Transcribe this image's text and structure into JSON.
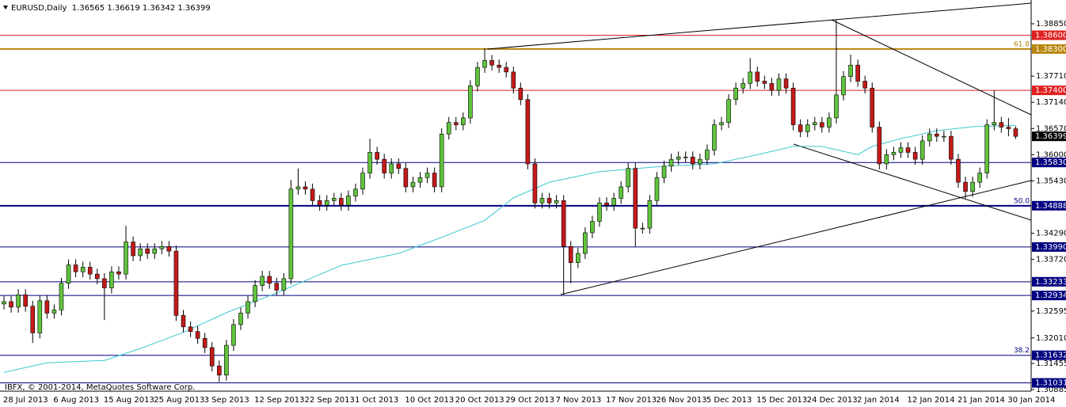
{
  "chart_data": {
    "type": "candlestick",
    "title": "EURUSD,Daily  1.36565 1.36619 1.36342 1.36399",
    "source": "IBFX, © 2001-2014, MetaQuotes Software Corp.",
    "categories": [
      "28 Jul 2013",
      null,
      null,
      null,
      null,
      null,
      null,
      "6 Aug 2013",
      null,
      null,
      null,
      null,
      null,
      null,
      "15 Aug 2013",
      null,
      null,
      null,
      null,
      null,
      null,
      "25 Aug 2013",
      null,
      null,
      null,
      null,
      null,
      null,
      "3 Sep 2013",
      null,
      null,
      null,
      null,
      null,
      null,
      "12 Sep 2013",
      null,
      null,
      null,
      null,
      null,
      null,
      "22 Sep 2013",
      null,
      null,
      null,
      null,
      null,
      null,
      "1 Oct 2013",
      null,
      null,
      null,
      null,
      null,
      null,
      "10 Oct 2013",
      null,
      null,
      null,
      null,
      null,
      null,
      "20 Oct 2013",
      null,
      null,
      null,
      null,
      null,
      null,
      "29 Oct 2013",
      null,
      null,
      null,
      null,
      null,
      null,
      "7 Nov 2013",
      null,
      null,
      null,
      null,
      null,
      null,
      "17 Nov 2013",
      null,
      null,
      null,
      null,
      null,
      null,
      "26 Nov 2013",
      null,
      null,
      null,
      null,
      null,
      null,
      "5 Dec 2013",
      null,
      null,
      null,
      null,
      null,
      null,
      "15 Dec 2013",
      null,
      null,
      null,
      null,
      null,
      null,
      "24 Dec 2013",
      null,
      null,
      null,
      null,
      null,
      null,
      "2 Jan 2014",
      null,
      null,
      null,
      null,
      null,
      null,
      "12 Jan 2014",
      null,
      null,
      null,
      null,
      null,
      null,
      "21 Jan 2014",
      null,
      null,
      null,
      null,
      null,
      null,
      "30 Jan 2014",
      null
    ],
    "open": [
      1.3275,
      1.328,
      1.3268,
      1.3295,
      1.327,
      1.3212,
      1.3282,
      1.3255,
      1.3262,
      1.332,
      1.336,
      1.3345,
      1.3355,
      1.334,
      1.333,
      1.331,
      1.3345,
      1.334,
      1.341,
      1.338,
      1.3395,
      1.3385,
      1.3395,
      1.34,
      1.339,
      1.325,
      1.3225,
      1.3215,
      1.32,
      1.318,
      1.314,
      1.312,
      1.3185,
      1.323,
      1.3255,
      1.328,
      1.3315,
      1.3335,
      1.332,
      1.3305,
      1.333,
      1.3525,
      1.353,
      1.3525,
      1.35,
      1.349,
      1.35,
      1.3505,
      1.349,
      1.351,
      1.3525,
      1.356,
      1.3605,
      1.359,
      1.356,
      1.358,
      1.357,
      1.353,
      1.354,
      1.355,
      1.356,
      1.353,
      1.3645,
      1.367,
      1.3665,
      1.368,
      1.375,
      1.379,
      1.3805,
      1.3795,
      1.379,
      1.378,
      1.3745,
      1.372,
      1.358,
      1.3495,
      1.3505,
      1.3495,
      1.35,
      1.34,
      1.3365,
      1.3385,
      1.343,
      1.3455,
      1.3495,
      1.349,
      1.3505,
      1.353,
      1.357,
      1.344,
      1.344,
      1.35,
      1.355,
      1.3575,
      1.359,
      1.3595,
      1.3595,
      1.358,
      1.359,
      1.361,
      1.3665,
      1.367,
      1.372,
      1.3745,
      1.3755,
      1.378,
      1.376,
      1.3755,
      1.374,
      1.3765,
      1.3745,
      1.3665,
      1.365,
      1.3665,
      1.367,
      1.366,
      1.368,
      1.373,
      1.377,
      1.3795,
      1.376,
      1.3745,
      1.366,
      1.358,
      1.36,
      1.3605,
      1.3615,
      1.3605,
      1.359,
      1.363,
      1.3645,
      1.364,
      1.364,
      1.359,
      1.354,
      1.352,
      1.354,
      1.356,
      1.3665,
      1.367,
      1.366,
      1.36565
    ],
    "high": [
      1.3292,
      1.3292,
      1.3307,
      1.3307,
      1.3282,
      1.3294,
      1.3294,
      1.3274,
      1.3332,
      1.3372,
      1.3372,
      1.3367,
      1.3367,
      1.3352,
      1.3342,
      1.3357,
      1.3357,
      1.3445,
      1.3422,
      1.3407,
      1.3407,
      1.3407,
      1.3412,
      1.3412,
      1.3402,
      1.3262,
      1.3237,
      1.3227,
      1.3212,
      1.3192,
      1.3152,
      1.3197,
      1.3242,
      1.3267,
      1.3292,
      1.3327,
      1.3347,
      1.3347,
      1.3332,
      1.3342,
      1.3545,
      1.357,
      1.3542,
      1.3537,
      1.3512,
      1.3512,
      1.3517,
      1.3517,
      1.3522,
      1.3537,
      1.3572,
      1.3635,
      1.3617,
      1.3602,
      1.3592,
      1.3592,
      1.3582,
      1.3552,
      1.3562,
      1.3572,
      1.3572,
      1.3657,
      1.3682,
      1.3682,
      1.3692,
      1.3762,
      1.3802,
      1.3832,
      1.3817,
      1.3807,
      1.3802,
      1.3792,
      1.3757,
      1.3732,
      1.3592,
      1.3517,
      1.3517,
      1.3512,
      1.3512,
      1.3412,
      1.3397,
      1.3442,
      1.3467,
      1.3507,
      1.3507,
      1.3517,
      1.3542,
      1.3582,
      1.3582,
      1.3452,
      1.3512,
      1.3562,
      1.3587,
      1.3602,
      1.3607,
      1.3607,
      1.3607,
      1.3602,
      1.3622,
      1.3677,
      1.3682,
      1.3732,
      1.3757,
      1.3767,
      1.381,
      1.3792,
      1.3772,
      1.3767,
      1.3777,
      1.3777,
      1.3757,
      1.3677,
      1.3677,
      1.3682,
      1.3682,
      1.3692,
      1.3893,
      1.3782,
      1.3818,
      1.3807,
      1.3772,
      1.3757,
      1.3672,
      1.3612,
      1.3617,
      1.3627,
      1.3627,
      1.3617,
      1.3642,
      1.3657,
      1.3657,
      1.3652,
      1.3652,
      1.3602,
      1.3552,
      1.3552,
      1.3572,
      1.3677,
      1.374,
      1.3682,
      1.368,
      1.36619
    ],
    "low": [
      1.3263,
      1.3256,
      1.3256,
      1.3258,
      1.319,
      1.32,
      1.3243,
      1.3243,
      1.325,
      1.3308,
      1.3333,
      1.3333,
      1.3328,
      1.3318,
      1.324,
      1.3298,
      1.3328,
      1.3328,
      1.3368,
      1.3368,
      1.3373,
      1.3373,
      1.3383,
      1.3378,
      1.3238,
      1.3213,
      1.3203,
      1.3188,
      1.3168,
      1.3128,
      1.3105,
      1.3108,
      1.3173,
      1.3218,
      1.3243,
      1.3268,
      1.3303,
      1.3308,
      1.3293,
      1.3293,
      1.3318,
      1.3513,
      1.3513,
      1.3488,
      1.3478,
      1.3478,
      1.3488,
      1.3478,
      1.3478,
      1.3498,
      1.3513,
      1.3548,
      1.3578,
      1.3548,
      1.3548,
      1.3558,
      1.3518,
      1.3518,
      1.3528,
      1.3538,
      1.3518,
      1.3518,
      1.3633,
      1.3653,
      1.3653,
      1.3668,
      1.3738,
      1.3778,
      1.3783,
      1.3778,
      1.3768,
      1.3733,
      1.3708,
      1.3568,
      1.3483,
      1.3483,
      1.3483,
      1.3483,
      1.3295,
      1.332,
      1.3353,
      1.3373,
      1.3418,
      1.3443,
      1.3478,
      1.3478,
      1.3493,
      1.3518,
      1.34,
      1.3428,
      1.3428,
      1.3488,
      1.3538,
      1.3563,
      1.3578,
      1.3583,
      1.3568,
      1.3568,
      1.3578,
      1.3598,
      1.3653,
      1.3658,
      1.3708,
      1.3733,
      1.3743,
      1.3748,
      1.3743,
      1.3728,
      1.3728,
      1.3733,
      1.3653,
      1.3638,
      1.3638,
      1.3653,
      1.3648,
      1.3648,
      1.3668,
      1.3718,
      1.3758,
      1.3748,
      1.3733,
      1.3648,
      1.3568,
      1.3568,
      1.3588,
      1.3593,
      1.3593,
      1.3578,
      1.3578,
      1.3618,
      1.3628,
      1.3628,
      1.3578,
      1.3528,
      1.3505,
      1.3508,
      1.3528,
      1.3548,
      1.3653,
      1.3648,
      1.364,
      1.36342
    ],
    "close": [
      1.328,
      1.3268,
      1.3295,
      1.327,
      1.3212,
      1.3282,
      1.3255,
      1.3262,
      1.332,
      1.336,
      1.3345,
      1.3355,
      1.334,
      1.333,
      1.331,
      1.3345,
      1.334,
      1.341,
      1.338,
      1.3395,
      1.3385,
      1.3395,
      1.34,
      1.339,
      1.325,
      1.3225,
      1.3215,
      1.32,
      1.318,
      1.314,
      1.312,
      1.3185,
      1.323,
      1.3255,
      1.328,
      1.3315,
      1.3335,
      1.332,
      1.3305,
      1.333,
      1.3525,
      1.353,
      1.3525,
      1.35,
      1.349,
      1.35,
      1.3505,
      1.349,
      1.351,
      1.3525,
      1.356,
      1.3605,
      1.359,
      1.356,
      1.358,
      1.357,
      1.353,
      1.354,
      1.355,
      1.356,
      1.353,
      1.3645,
      1.367,
      1.3665,
      1.368,
      1.375,
      1.379,
      1.3805,
      1.3795,
      1.379,
      1.378,
      1.3745,
      1.372,
      1.358,
      1.3495,
      1.3505,
      1.3495,
      1.35,
      1.34,
      1.3365,
      1.3385,
      1.343,
      1.3455,
      1.3495,
      1.349,
      1.3505,
      1.353,
      1.357,
      1.344,
      1.344,
      1.35,
      1.355,
      1.3575,
      1.359,
      1.3595,
      1.3595,
      1.358,
      1.359,
      1.361,
      1.3665,
      1.367,
      1.372,
      1.3745,
      1.3755,
      1.378,
      1.376,
      1.3755,
      1.374,
      1.3765,
      1.3745,
      1.3665,
      1.365,
      1.3665,
      1.367,
      1.366,
      1.368,
      1.373,
      1.377,
      1.3795,
      1.376,
      1.3745,
      1.366,
      1.358,
      1.36,
      1.3605,
      1.3615,
      1.3605,
      1.359,
      1.363,
      1.3645,
      1.364,
      1.364,
      1.359,
      1.354,
      1.352,
      1.354,
      1.356,
      1.3665,
      1.367,
      1.366,
      1.36565,
      1.36399
    ],
    "up_color": "#5fc43c",
    "down_color": "#c41a1a",
    "wick_color": "#000000",
    "ma": {
      "color": "#3cc8d0",
      "x": [
        0,
        6,
        14,
        19,
        25,
        31,
        38,
        47,
        55,
        61,
        67,
        71,
        76,
        83,
        92,
        99,
        105,
        110,
        114,
        119,
        121,
        125,
        130,
        135,
        141
      ],
      "values": [
        1.3126,
        1.3147,
        1.3152,
        1.3178,
        1.3213,
        1.3256,
        1.3299,
        1.3359,
        1.3385,
        1.342,
        1.3457,
        1.3506,
        1.354,
        1.3563,
        1.3575,
        1.358,
        1.36,
        1.3618,
        1.3618,
        1.36,
        1.3618,
        1.3635,
        1.3652,
        1.3661,
        1.3664
      ]
    },
    "levels": [
      {
        "value": 1.386,
        "label": "1.38600",
        "color": "#e02020",
        "width": 1
      },
      {
        "value": 1.383,
        "label": "1.38300",
        "color": "#b8860b",
        "width": 2,
        "fib": "61.8"
      },
      {
        "value": 1.374,
        "label": "1.37400",
        "color": "#e02020",
        "width": 1
      },
      {
        "value": 1.3583,
        "label": "1.35830",
        "color": "#000080",
        "width": 1
      },
      {
        "value": 1.34888,
        "label": "1.34888",
        "color": "#000080",
        "width": 2,
        "fib": "50.0"
      },
      {
        "value": 1.3399,
        "label": "1.33990",
        "color": "#000080",
        "width": 1
      },
      {
        "value": 1.33233,
        "label": "1.33233",
        "color": "#000080",
        "width": 1
      },
      {
        "value": 1.32934,
        "label": "1.32934",
        "color": "#000080",
        "width": 1
      },
      {
        "value": 1.31632,
        "label": "1.31632",
        "color": "#000080",
        "width": 1,
        "fib": "38.2"
      },
      {
        "value": 1.31031,
        "label": "1.31031",
        "color": "#000080",
        "width": 1
      }
    ],
    "current_price": {
      "value": 1.36399,
      "label": "1.36399"
    },
    "ylim": [
      1.30851,
      1.39333
    ],
    "yticks": [
      {
        "value": 1.3885,
        "label": "1.38850"
      },
      {
        "value": 1.3771,
        "label": "1.37710"
      },
      {
        "value": 1.3714,
        "label": "1.37140"
      },
      {
        "value": 1.3657,
        "label": "1.36570"
      },
      {
        "value": 1.36,
        "label": "1.36000"
      },
      {
        "value": 1.3543,
        "label": "1.35430"
      },
      {
        "value": 1.3429,
        "label": "1.34290"
      },
      {
        "value": 1.3372,
        "label": "1.33720"
      },
      {
        "value": 1.32595,
        "label": "1.32595"
      },
      {
        "value": 1.3201,
        "label": "1.32010"
      },
      {
        "value": 1.31455,
        "label": "1.31455"
      },
      {
        "value": 1.30885,
        "label": "1.30885"
      }
    ],
    "grid": false
  }
}
